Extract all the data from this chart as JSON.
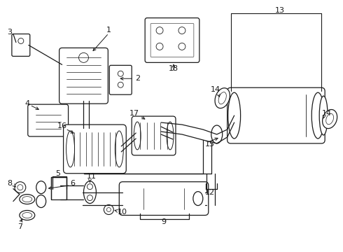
{
  "bg_color": "#ffffff",
  "line_color": "#1a1a1a",
  "text_color": "#1a1a1a",
  "fig_width": 4.9,
  "fig_height": 3.6,
  "dpi": 100
}
